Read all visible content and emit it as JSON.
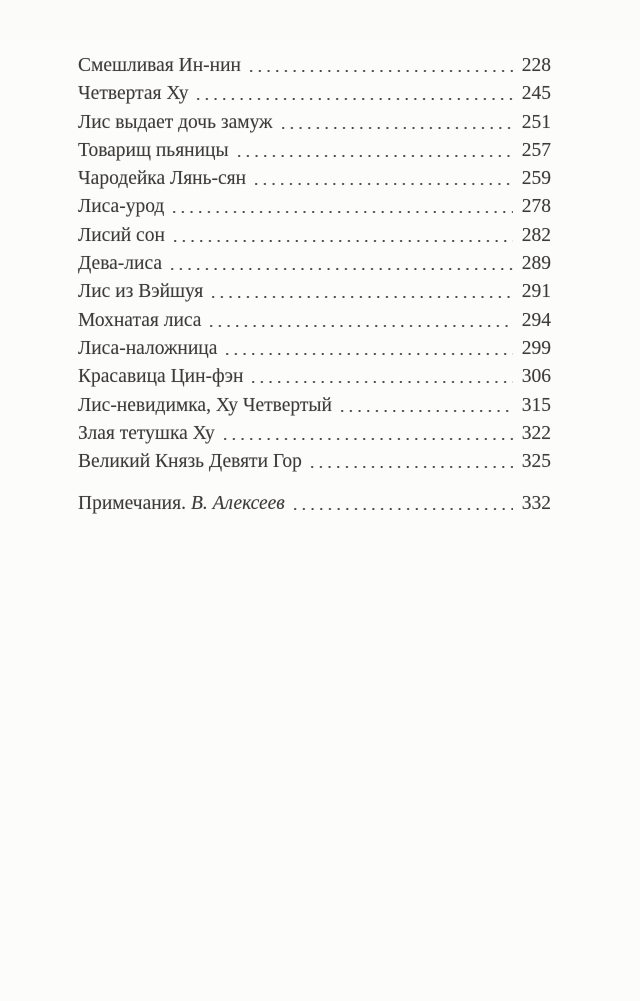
{
  "page": {
    "background_color": "#fcfcfb",
    "text_color": "#3d3b39",
    "dot_color": "#4c4a48"
  },
  "toc": {
    "entries": [
      {
        "title": "Смешливая Ин-нин",
        "page": "228"
      },
      {
        "title": "Четвертая Ху",
        "page": "245"
      },
      {
        "title": "Лис выдает дочь замуж",
        "page": "251"
      },
      {
        "title": "Товарищ пьяницы",
        "page": "257"
      },
      {
        "title": "Чародейка Лянь-сян",
        "page": "259"
      },
      {
        "title": "Лиса-урод",
        "page": "278"
      },
      {
        "title": "Лисий сон",
        "page": "282"
      },
      {
        "title": "Дева-лиса",
        "page": "289"
      },
      {
        "title": "Лис из Вэйшуя",
        "page": "291"
      },
      {
        "title": "Мохнатая лиса",
        "page": "294"
      },
      {
        "title": "Лиса-наложница",
        "page": "299"
      },
      {
        "title": "Красавица Цин-фэн",
        "page": "306"
      },
      {
        "title": "Лис-невидимка, Ху Четвертый",
        "page": "315"
      },
      {
        "title": "Злая тетушка Ху",
        "page": "322"
      },
      {
        "title": "Великий Князь Девяти Гор",
        "page": "325"
      },
      {
        "title": "Примечания.",
        "italic_suffix": "В. Алексеев",
        "page": "332",
        "extra_gap_before": true
      }
    ]
  }
}
